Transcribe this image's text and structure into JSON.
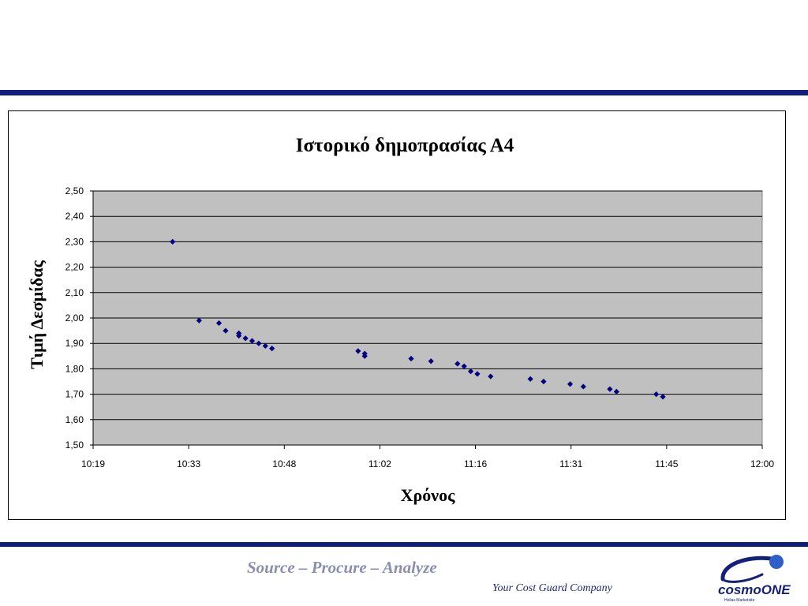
{
  "footer": {
    "tagline": "Source – Procure – Analyze",
    "subtagline": "Your Cost Guard Company",
    "logo_text": "cosmoONE",
    "logo_subtext": "Hellas Marketsite"
  },
  "colors": {
    "brand_bar": "#0f1f80",
    "plot_background": "#c0c0c0",
    "marker": "#000080",
    "tagline": "#8a8fb0"
  },
  "chart_data": {
    "type": "scatter",
    "title": "Ιστορικό δημοπρασίας Α4",
    "xlabel": "Χρόνος",
    "ylabel": "Τιμή Δεσμίδας",
    "x_axis": "time",
    "xlim": [
      "10:19",
      "12:00"
    ],
    "ylim": [
      1.5,
      2.5
    ],
    "x_ticks": [
      "10:19",
      "10:33",
      "10:48",
      "11:02",
      "11:16",
      "11:31",
      "11:45",
      "12:00"
    ],
    "y_ticks": [
      "1,50",
      "1,60",
      "1,70",
      "1,80",
      "1,90",
      "2,00",
      "2,10",
      "2,20",
      "2,30",
      "2,40",
      "2,50"
    ],
    "grid": "horizontal",
    "legend": "none",
    "points": [
      {
        "x": "10:31",
        "y": 2.3
      },
      {
        "x": "10:35",
        "y": 1.99
      },
      {
        "x": "10:38",
        "y": 1.98
      },
      {
        "x": "10:39",
        "y": 1.95
      },
      {
        "x": "10:41",
        "y": 1.94
      },
      {
        "x": "10:41",
        "y": 1.93
      },
      {
        "x": "10:42",
        "y": 1.92
      },
      {
        "x": "10:43",
        "y": 1.91
      },
      {
        "x": "10:44",
        "y": 1.9
      },
      {
        "x": "10:45",
        "y": 1.89
      },
      {
        "x": "10:46",
        "y": 1.88
      },
      {
        "x": "10:59",
        "y": 1.87
      },
      {
        "x": "11:00",
        "y": 1.86
      },
      {
        "x": "11:00",
        "y": 1.85
      },
      {
        "x": "11:07",
        "y": 1.84
      },
      {
        "x": "11:10",
        "y": 1.83
      },
      {
        "x": "11:14",
        "y": 1.82
      },
      {
        "x": "11:15",
        "y": 1.81
      },
      {
        "x": "11:16",
        "y": 1.79
      },
      {
        "x": "11:17",
        "y": 1.78
      },
      {
        "x": "11:19",
        "y": 1.77
      },
      {
        "x": "11:25",
        "y": 1.76
      },
      {
        "x": "11:27",
        "y": 1.75
      },
      {
        "x": "11:31",
        "y": 1.74
      },
      {
        "x": "11:33",
        "y": 1.73
      },
      {
        "x": "11:37",
        "y": 1.72
      },
      {
        "x": "11:38",
        "y": 1.71
      },
      {
        "x": "11:44",
        "y": 1.7
      },
      {
        "x": "11:45",
        "y": 1.69
      }
    ]
  }
}
